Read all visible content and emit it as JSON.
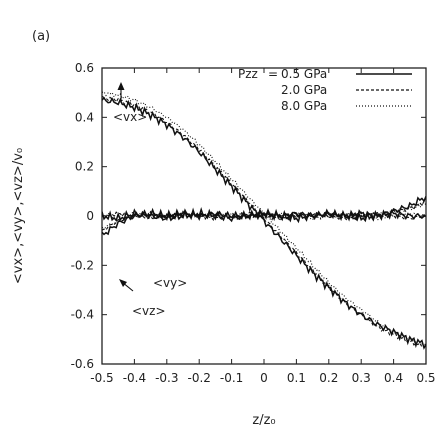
{
  "panel_label": "(a)",
  "chart_data": {
    "type": "line",
    "xlabel": "z/z₀",
    "ylabel": "<vx>,<vy>,<vz>/v₀",
    "xlim": [
      -0.5,
      0.5
    ],
    "ylim": [
      -0.6,
      0.6
    ],
    "xticks": [
      "-0.5",
      "-0.4",
      "-0.3",
      "-0.2",
      "-0.1",
      "0",
      "0.1",
      "0.2",
      "0.3",
      "0.4",
      "0.5"
    ],
    "yticks": [
      "0.6",
      "0.4",
      "0.2",
      "0",
      "-0.2",
      "-0.4",
      "-0.6"
    ],
    "legend": {
      "placement": "top-right",
      "prefix": "Pzz",
      "equals": "=",
      "entries": [
        {
          "label": "0.5 GPa",
          "style": "solid"
        },
        {
          "label": "2.0 GPa",
          "style": "dashed"
        },
        {
          "label": "8.0 GPa",
          "style": "dotted"
        }
      ]
    },
    "annotations": [
      {
        "text": "<vx>",
        "points_to": "upper curve",
        "x": -0.42,
        "y": 0.28
      },
      {
        "text": "<vy>",
        "points_to": "lower curve",
        "x": -0.34,
        "y": -0.21
      },
      {
        "text": "<vz>",
        "points_to": "middle curve",
        "x": -0.34,
        "y": -0.29
      }
    ],
    "series": [
      {
        "name": "0.5 GPa",
        "style": "solid",
        "groups": [
          {
            "component": "vx",
            "x": [
              -0.5,
              -0.45,
              -0.4,
              -0.35,
              -0.3,
              -0.25,
              -0.2,
              -0.15,
              -0.1,
              -0.05,
              0.0,
              0.05,
              0.1,
              0.15,
              0.2,
              0.25,
              0.3,
              0.35,
              0.4,
              0.45,
              0.5
            ],
            "y": [
              0.47,
              0.46,
              0.44,
              0.41,
              0.37,
              0.32,
              0.26,
              0.19,
              0.12,
              0.05,
              -0.02,
              -0.09,
              -0.16,
              -0.23,
              -0.29,
              -0.35,
              -0.4,
              -0.44,
              -0.47,
              -0.5,
              -0.52
            ]
          },
          {
            "component": "vy",
            "x": [
              -0.5,
              -0.45,
              -0.4,
              -0.35,
              -0.3,
              -0.25,
              -0.2,
              -0.15,
              -0.1,
              -0.05,
              0.0,
              0.05,
              0.1,
              0.15,
              0.2,
              0.25,
              0.3,
              0.35,
              0.4,
              0.45,
              0.5
            ],
            "y": [
              -0.08,
              -0.03,
              0.0,
              0.01,
              0.0,
              0.01,
              0.0,
              0.01,
              0.0,
              0.0,
              0.01,
              0.0,
              0.01,
              0.0,
              0.01,
              0.0,
              0.01,
              0.0,
              0.02,
              0.04,
              0.08
            ]
          },
          {
            "component": "vz",
            "x": [
              -0.5,
              -0.45,
              -0.4,
              -0.35,
              -0.3,
              -0.25,
              -0.2,
              -0.15,
              -0.1,
              -0.05,
              0.0,
              0.05,
              0.1,
              0.15,
              0.2,
              0.25,
              0.3,
              0.35,
              0.4,
              0.45,
              0.5
            ],
            "y": [
              0.0,
              -0.01,
              0.01,
              0.0,
              -0.01,
              0.0,
              0.01,
              0.0,
              -0.01,
              0.0,
              0.01,
              0.0,
              -0.01,
              0.0,
              0.01,
              0.0,
              -0.01,
              0.0,
              0.01,
              0.0,
              0.0
            ]
          }
        ]
      },
      {
        "name": "2.0 GPa",
        "style": "dashed",
        "groups": [
          {
            "component": "vx",
            "x": [
              -0.5,
              -0.45,
              -0.4,
              -0.35,
              -0.3,
              -0.25,
              -0.2,
              -0.15,
              -0.1,
              -0.05,
              0.0,
              0.05,
              0.1,
              0.15,
              0.2,
              0.25,
              0.3,
              0.35,
              0.4,
              0.45,
              0.5
            ],
            "y": [
              0.48,
              0.47,
              0.45,
              0.42,
              0.38,
              0.33,
              0.27,
              0.2,
              0.13,
              0.06,
              -0.01,
              -0.08,
              -0.15,
              -0.22,
              -0.29,
              -0.35,
              -0.4,
              -0.45,
              -0.48,
              -0.51,
              -0.53
            ]
          },
          {
            "component": "vy",
            "x": [
              -0.5,
              -0.45,
              -0.4,
              -0.35,
              -0.3,
              -0.25,
              -0.2,
              -0.15,
              -0.1,
              -0.05,
              0.0,
              0.05,
              0.1,
              0.15,
              0.2,
              0.25,
              0.3,
              0.35,
              0.4,
              0.45,
              0.5
            ],
            "y": [
              -0.06,
              -0.02,
              0.0,
              0.01,
              0.0,
              0.01,
              0.0,
              0.01,
              0.0,
              0.0,
              0.01,
              0.0,
              0.01,
              0.0,
              0.01,
              0.0,
              0.01,
              0.0,
              0.02,
              0.03,
              0.06
            ]
          },
          {
            "component": "vz",
            "x": [
              -0.5,
              -0.45,
              -0.4,
              -0.35,
              -0.3,
              -0.25,
              -0.2,
              -0.15,
              -0.1,
              -0.05,
              0.0,
              0.05,
              0.1,
              0.15,
              0.2,
              0.25,
              0.3,
              0.35,
              0.4,
              0.45,
              0.5
            ],
            "y": [
              0.0,
              0.01,
              0.0,
              -0.01,
              0.0,
              0.01,
              0.0,
              -0.01,
              0.0,
              0.01,
              0.0,
              -0.01,
              0.0,
              0.01,
              0.0,
              -0.01,
              0.0,
              0.01,
              0.0,
              -0.01,
              0.0
            ]
          }
        ]
      },
      {
        "name": "8.0 GPa",
        "style": "dotted",
        "groups": [
          {
            "component": "vx",
            "x": [
              -0.5,
              -0.45,
              -0.4,
              -0.35,
              -0.3,
              -0.25,
              -0.2,
              -0.15,
              -0.1,
              -0.05,
              0.0,
              0.05,
              0.1,
              0.15,
              0.2,
              0.25,
              0.3,
              0.35,
              0.4,
              0.45,
              0.5
            ],
            "y": [
              0.5,
              0.49,
              0.47,
              0.44,
              0.4,
              0.35,
              0.29,
              0.22,
              0.15,
              0.08,
              0.01,
              -0.06,
              -0.13,
              -0.2,
              -0.27,
              -0.33,
              -0.38,
              -0.43,
              -0.47,
              -0.5,
              -0.52
            ]
          },
          {
            "component": "vy",
            "x": [
              -0.5,
              -0.45,
              -0.4,
              -0.35,
              -0.3,
              -0.25,
              -0.2,
              -0.15,
              -0.1,
              -0.05,
              0.0,
              0.05,
              0.1,
              0.15,
              0.2,
              0.25,
              0.3,
              0.35,
              0.4,
              0.45,
              0.5
            ],
            "y": [
              -0.05,
              -0.02,
              0.0,
              0.01,
              0.0,
              0.01,
              0.0,
              0.0,
              0.01,
              0.0,
              0.01,
              0.0,
              0.01,
              0.0,
              0.0,
              0.01,
              0.0,
              0.01,
              0.02,
              0.03,
              0.05
            ]
          },
          {
            "component": "vz",
            "x": [
              -0.5,
              -0.45,
              -0.4,
              -0.35,
              -0.3,
              -0.25,
              -0.2,
              -0.15,
              -0.1,
              -0.05,
              0.0,
              0.05,
              0.1,
              0.15,
              0.2,
              0.25,
              0.3,
              0.35,
              0.4,
              0.45,
              0.5
            ],
            "y": [
              0.0,
              0.0,
              0.01,
              0.0,
              -0.01,
              0.0,
              0.01,
              0.0,
              -0.01,
              0.0,
              0.0,
              0.01,
              0.0,
              -0.01,
              0.0,
              0.01,
              0.0,
              -0.01,
              0.0,
              0.01,
              0.0
            ]
          }
        ]
      }
    ]
  }
}
